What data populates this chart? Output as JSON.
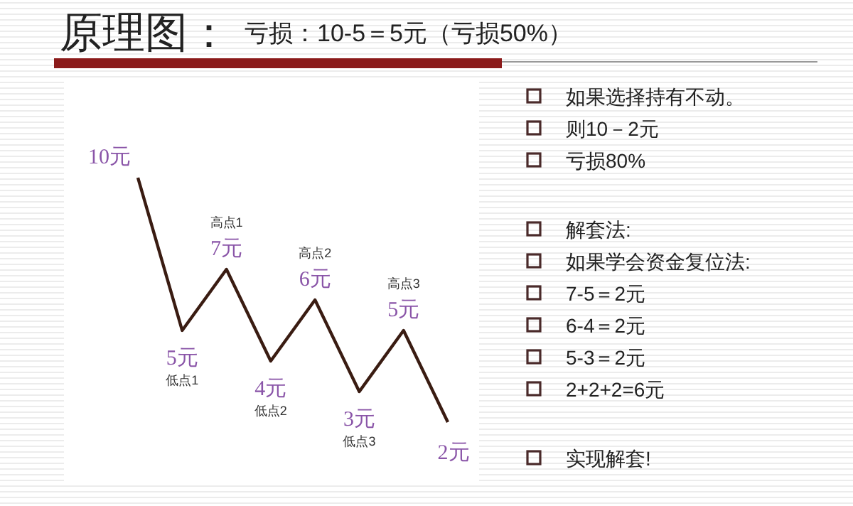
{
  "chart_data": {
    "type": "line",
    "title": "原理图：",
    "subtitle": "亏损：10-5＝5元（亏损50%）",
    "categories": [
      null,
      null,
      null,
      null,
      null,
      null,
      null,
      null
    ],
    "series": [
      {
        "color": "#3a1c12",
        "values": [
          10,
          5,
          7,
          4,
          6,
          3,
          5,
          2
        ],
        "value_labels": [
          "10元",
          "5元",
          "7元",
          "4元",
          "6元",
          "3元",
          "5元",
          "2元"
        ]
      }
    ],
    "annotations": [
      "低点1",
      "高点1",
      "低点2",
      "高点2",
      "低点3",
      "高点3",
      "如果选择持有不动。",
      "则10－2元",
      "亏损80%",
      "解套法:",
      "如果学会资金复位法:",
      "7-5＝2元",
      "6-4＝2元",
      "5-3＝2元",
      "2+2+2=6元",
      "实现解套!"
    ]
  }
}
